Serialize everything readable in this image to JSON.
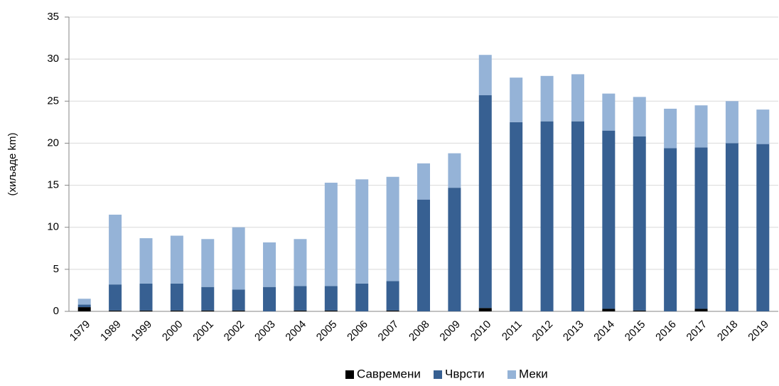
{
  "chart_data": {
    "type": "stacked_bar",
    "y_label": "(хиљаде km)",
    "categories": [
      "1979",
      "1989",
      "1999",
      "2000",
      "2001",
      "2002",
      "2003",
      "2004",
      "2005",
      "2006",
      "2007",
      "2008",
      "2009",
      "2010",
      "2011",
      "2012",
      "2013",
      "2014",
      "2015",
      "2016",
      "2017",
      "2018",
      "2019"
    ],
    "series": [
      {
        "name": "Савремени",
        "color": "#000000",
        "values": [
          0.5,
          0.1,
          0.1,
          0.1,
          0.1,
          0.1,
          0,
          0.1,
          0.1,
          0,
          0.1,
          0,
          0,
          0.4,
          0,
          0,
          0,
          0.3,
          0.1,
          0,
          0.3,
          0,
          0
        ]
      },
      {
        "name": "Чврсти",
        "color": "#376092",
        "values": [
          0.3,
          3.1,
          3.2,
          3.2,
          2.8,
          2.5,
          2.9,
          2.9,
          2.9,
          3.3,
          3.5,
          13.3,
          14.7,
          25.3,
          22.5,
          22.6,
          22.6,
          21.2,
          20.7,
          19.4,
          19.2,
          20.0,
          19.9
        ]
      },
      {
        "name": "Меки",
        "color": "#95b3d7",
        "values": [
          0.7,
          8.3,
          5.4,
          5.7,
          5.7,
          7.4,
          5.3,
          5.6,
          12.3,
          12.4,
          12.4,
          4.3,
          4.1,
          4.8,
          5.3,
          5.4,
          5.6,
          4.4,
          4.7,
          4.7,
          5.0,
          5.0,
          4.1
        ]
      }
    ],
    "ylim": [
      0,
      35
    ],
    "yticks": [
      0,
      5,
      10,
      15,
      20,
      25,
      30,
      35
    ],
    "grid": true
  }
}
